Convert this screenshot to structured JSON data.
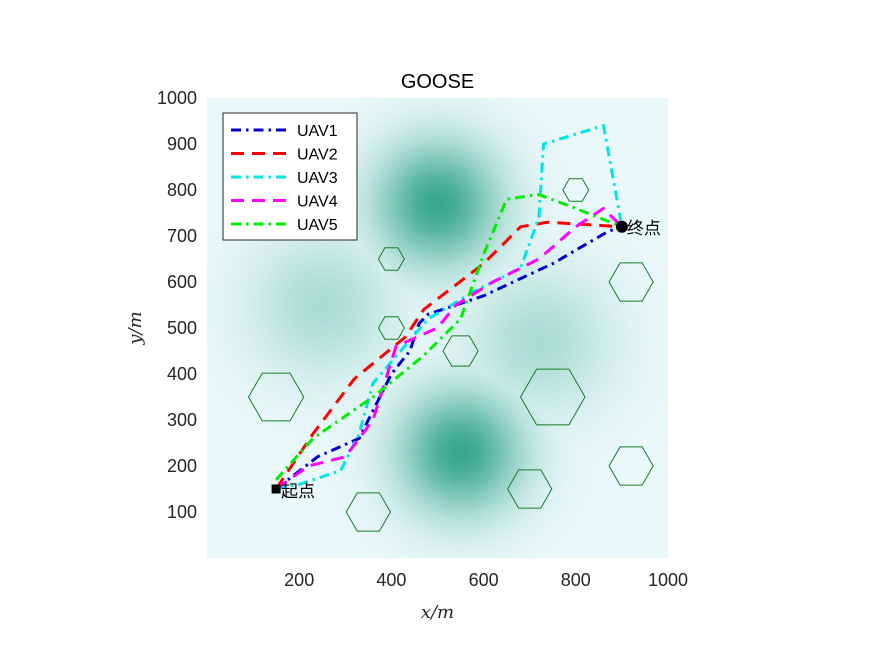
{
  "chart_data": {
    "type": "line",
    "title": "GOOSE",
    "xlabel": "x/m",
    "ylabel": "y/m",
    "xlim": [
      0,
      1000
    ],
    "ylim": [
      0,
      1000
    ],
    "xticks": [
      200,
      400,
      600,
      800,
      1000
    ],
    "yticks": [
      100,
      200,
      300,
      400,
      500,
      600,
      700,
      800,
      900,
      1000
    ],
    "grid": false,
    "legend_position": "top-left",
    "background": "terrain heatmap (light cyan with teal peaks)",
    "terrain_peaks": [
      {
        "x": 500,
        "y": 770,
        "spread": 95,
        "strength": 1.0
      },
      {
        "x": 550,
        "y": 230,
        "spread": 95,
        "strength": 1.0
      },
      {
        "x": 250,
        "y": 550,
        "spread": 110,
        "strength": 0.35
      },
      {
        "x": 720,
        "y": 470,
        "spread": 110,
        "strength": 0.35
      }
    ],
    "obstacles": [
      {
        "x": 400,
        "y": 650,
        "r": 28
      },
      {
        "x": 400,
        "y": 500,
        "r": 28
      },
      {
        "x": 550,
        "y": 450,
        "r": 38
      },
      {
        "x": 800,
        "y": 800,
        "r": 28
      },
      {
        "x": 920,
        "y": 600,
        "r": 48
      },
      {
        "x": 150,
        "y": 350,
        "r": 60
      },
      {
        "x": 750,
        "y": 350,
        "r": 70
      },
      {
        "x": 700,
        "y": 150,
        "r": 48
      },
      {
        "x": 350,
        "y": 100,
        "r": 48
      },
      {
        "x": 920,
        "y": 200,
        "r": 48
      }
    ],
    "start": {
      "x": 150,
      "y": 150,
      "label": "起点"
    },
    "end": {
      "x": 900,
      "y": 720,
      "label": "终点"
    },
    "series": [
      {
        "name": "UAV1",
        "color": "#0000cc",
        "dash": "dashdot",
        "x": [
          150,
          240,
          330,
          400,
          440,
          460,
          480,
          600,
          750,
          870,
          900
        ],
        "y": [
          150,
          220,
          260,
          400,
          450,
          510,
          530,
          570,
          640,
          710,
          720
        ]
      },
      {
        "name": "UAV2",
        "color": "#ff0000",
        "dash": "dashed",
        "x": [
          150,
          230,
          320,
          430,
          470,
          600,
          680,
          740,
          900
        ],
        "y": [
          150,
          270,
          390,
          480,
          540,
          640,
          720,
          730,
          720
        ]
      },
      {
        "name": "UAV3",
        "color": "#00e5e5",
        "dash": "dashdot",
        "x": [
          150,
          200,
          290,
          330,
          360,
          480,
          580,
          680,
          720,
          730,
          860,
          900
        ],
        "y": [
          150,
          160,
          190,
          270,
          380,
          520,
          580,
          630,
          740,
          900,
          940,
          720
        ]
      },
      {
        "name": "UAV4",
        "color": "#ff00ff",
        "dash": "dashed",
        "x": [
          150,
          220,
          300,
          360,
          410,
          500,
          540,
          620,
          720,
          800,
          860,
          900
        ],
        "y": [
          150,
          200,
          220,
          300,
          460,
          500,
          550,
          600,
          650,
          720,
          760,
          720
        ]
      },
      {
        "name": "UAV5",
        "color": "#00ee00",
        "dash": "dashdot",
        "x": [
          150,
          230,
          360,
          470,
          550,
          600,
          650,
          720,
          800,
          900
        ],
        "y": [
          170,
          260,
          350,
          440,
          520,
          660,
          780,
          790,
          760,
          720
        ]
      }
    ]
  }
}
